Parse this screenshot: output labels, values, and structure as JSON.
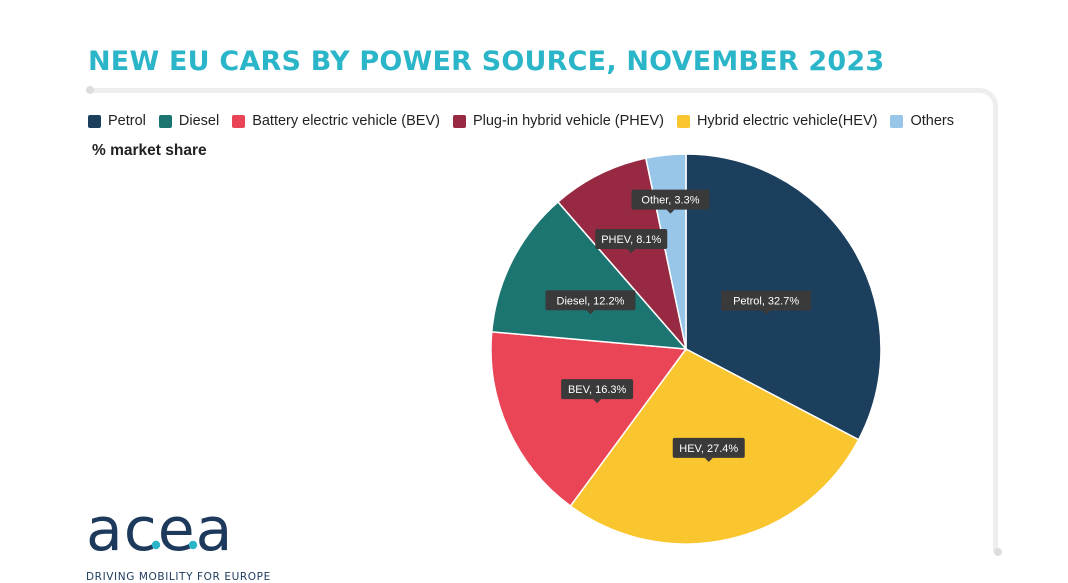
{
  "title": "NEW EU CARS BY POWER SOURCE, NOVEMBER 2023",
  "subtitle": "% market share",
  "legend": [
    {
      "label": "Petrol",
      "color": "#1c3f5e"
    },
    {
      "label": "Diesel",
      "color": "#1c7571"
    },
    {
      "label": "Battery electric vehicle (BEV)",
      "color": "#ea4556"
    },
    {
      "label": "Plug-in hybrid vehicle (PHEV)",
      "color": "#972a42"
    },
    {
      "label": "Hybrid electric vehicle(HEV)",
      "color": "#f9c630"
    },
    {
      "label": "Others",
      "color": "#98c6e9"
    }
  ],
  "logo": {
    "word": "acea",
    "tagline": "DRIVING MOBILITY FOR EUROPE",
    "dot_color": "#2bb5c8"
  },
  "chart_data": {
    "type": "pie",
    "title": "NEW EU CARS BY POWER SOURCE, NOVEMBER 2023",
    "unit": "% market share",
    "slices": [
      {
        "category": "Petrol",
        "label": "Petrol, 32.7%",
        "value": 32.7,
        "color": "#1c3f5e"
      },
      {
        "category": "Hybrid electric vehicle(HEV)",
        "label": "HEV, 27.4%",
        "value": 27.4,
        "color": "#f9c630"
      },
      {
        "category": "Battery electric vehicle (BEV)",
        "label": "BEV, 16.3%",
        "value": 16.3,
        "color": "#ea4556"
      },
      {
        "category": "Diesel",
        "label": "Diesel, 12.2%",
        "value": 12.2,
        "color": "#1c7571"
      },
      {
        "category": "Plug-in hybrid vehicle (PHEV)",
        "label": "PHEV, 8.1%",
        "value": 8.1,
        "color": "#972a42"
      },
      {
        "category": "Others",
        "label": "Other, 3.3%",
        "value": 3.3,
        "color": "#98c6e9"
      }
    ],
    "start_angle_deg": 0,
    "direction": "clockwise",
    "legend_position": "top"
  }
}
